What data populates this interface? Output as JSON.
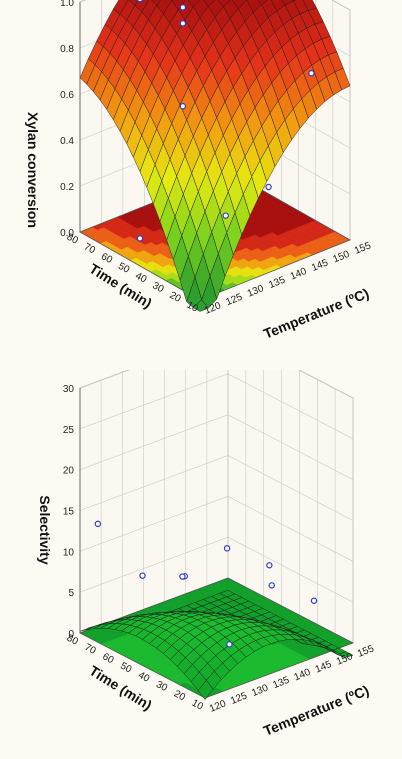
{
  "chart_data": [
    {
      "type": "surface3d",
      "zlabel": "Xylan conversion",
      "xlabel": "Temperature (ºC)",
      "ylabel": "Time (min)",
      "temperature_ticks": [
        "120",
        "125",
        "130",
        "135",
        "140",
        "145",
        "150",
        "155"
      ],
      "time_ticks": [
        "10",
        "20",
        "30",
        "40",
        "50",
        "60",
        "70",
        "80"
      ],
      "z_ticks": [
        "0.0",
        "0.2",
        "0.4",
        "0.6",
        "0.8",
        "1.0"
      ],
      "xlim": [
        120,
        155
      ],
      "ylim": [
        10,
        80
      ],
      "zlim": [
        0.0,
        1.0
      ],
      "surface": {
        "a": 0.95,
        "bT": 0.32,
        "bt": 0.32,
        "cT": 0.22,
        "ct": 0.18,
        "cTt": 0.12,
        "xc": 137.5,
        "yc": 45
      },
      "color_stops": [
        "#2e9f2e",
        "#7ad11e",
        "#e6ea12",
        "#f29a10",
        "#e5321a",
        "#a80f0f"
      ],
      "points": [
        {
          "T": 150,
          "t": 45,
          "z": 0.98
        },
        {
          "T": 140,
          "t": 70,
          "z": 0.87
        },
        {
          "T": 140,
          "t": 70,
          "z": 0.8
        },
        {
          "T": 150,
          "t": 20,
          "z": 0.72
        },
        {
          "T": 130,
          "t": 70,
          "z": 0.98
        },
        {
          "T": 140,
          "t": 20,
          "z": 0.3
        },
        {
          "T": 130,
          "t": 20,
          "z": 0.25
        },
        {
          "T": 120,
          "t": 45,
          "z": 0.12
        },
        {
          "T": 130,
          "t": 45,
          "z": 0.62
        }
      ]
    },
    {
      "type": "surface3d",
      "zlabel": "Selectivity",
      "xlabel": "Temperature (ºC)",
      "ylabel": "Time (min)",
      "temperature_ticks": [
        "120",
        "125",
        "130",
        "135",
        "140",
        "145",
        "150",
        "155"
      ],
      "time_ticks": [
        "10",
        "20",
        "30",
        "40",
        "50",
        "60",
        "70",
        "80"
      ],
      "z_ticks": [
        "0",
        "5",
        "10",
        "15",
        "20",
        "25",
        "30"
      ],
      "xlim": [
        120,
        155
      ],
      "ylim": [
        10,
        80
      ],
      "zlim": [
        0,
        30
      ],
      "surface": {
        "a": 3.0,
        "bT": -5.2,
        "bt": -3.8,
        "cT": 5.0,
        "ct": 3.2,
        "cTt": 4.0,
        "xc": 137.5,
        "yc": 45
      },
      "color_stops": [
        "#11a02a",
        "#1fc42f",
        "#7fd21f",
        "#e8e714",
        "#f39a10",
        "#e0281a"
      ],
      "points": [
        {
          "T": 120,
          "t": 70,
          "z": 14.5
        },
        {
          "T": 120,
          "t": 45,
          "z": 11.0
        },
        {
          "T": 130,
          "t": 45,
          "z": 9.0
        },
        {
          "T": 140,
          "t": 45,
          "z": 10.5
        },
        {
          "T": 150,
          "t": 45,
          "z": 6.5
        },
        {
          "T": 140,
          "t": 20,
          "z": 8.8
        },
        {
          "T": 130,
          "t": 20,
          "z": 3.5
        },
        {
          "T": 140,
          "t": 70,
          "z": 4.2
        },
        {
          "T": 150,
          "t": 20,
          "z": 5.0
        }
      ]
    }
  ]
}
